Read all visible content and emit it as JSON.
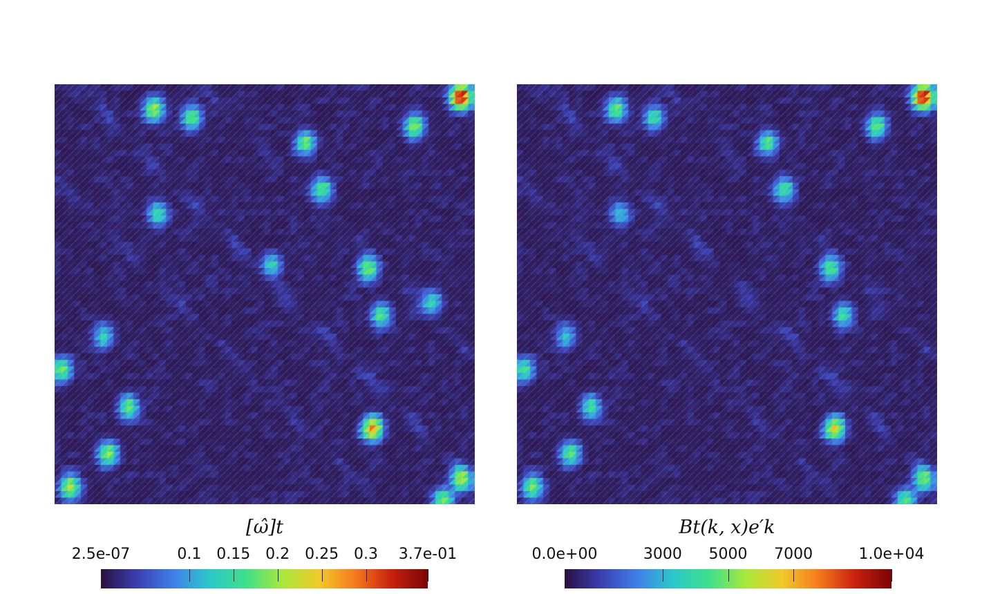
{
  "chart_data": [
    {
      "type": "heatmap",
      "title": "[ω̂]t",
      "colorbar": {
        "min_label": "2.5e-07",
        "max_label": "3.7e-01",
        "range": [
          2.5e-07,
          0.37
        ],
        "ticks": [
          {
            "value": 0.1,
            "label": "0.1"
          },
          {
            "value": 0.15,
            "label": "0.15"
          },
          {
            "value": 0.2,
            "label": "0.2"
          },
          {
            "value": 0.25,
            "label": "0.25"
          },
          {
            "value": 0.3,
            "label": "0.3"
          }
        ]
      },
      "grid_cells": 64,
      "hotspots": [
        {
          "x": 0.24,
          "y": 0.06,
          "value": 0.21
        },
        {
          "x": 0.33,
          "y": 0.08,
          "value": 0.18
        },
        {
          "x": 0.97,
          "y": 0.03,
          "value": 0.37
        },
        {
          "x": 0.86,
          "y": 0.1,
          "value": 0.2
        },
        {
          "x": 0.6,
          "y": 0.14,
          "value": 0.18
        },
        {
          "x": 0.64,
          "y": 0.25,
          "value": 0.17
        },
        {
          "x": 0.25,
          "y": 0.31,
          "value": 0.15
        },
        {
          "x": 0.52,
          "y": 0.43,
          "value": 0.14
        },
        {
          "x": 0.75,
          "y": 0.44,
          "value": 0.19
        },
        {
          "x": 0.78,
          "y": 0.55,
          "value": 0.17
        },
        {
          "x": 0.12,
          "y": 0.6,
          "value": 0.14
        },
        {
          "x": 0.02,
          "y": 0.68,
          "value": 0.19
        },
        {
          "x": 0.18,
          "y": 0.77,
          "value": 0.18
        },
        {
          "x": 0.13,
          "y": 0.88,
          "value": 0.2
        },
        {
          "x": 0.04,
          "y": 0.96,
          "value": 0.22
        },
        {
          "x": 0.76,
          "y": 0.82,
          "value": 0.28
        },
        {
          "x": 0.97,
          "y": 0.94,
          "value": 0.21
        },
        {
          "x": 0.93,
          "y": 0.99,
          "value": 0.19
        },
        {
          "x": 0.9,
          "y": 0.52,
          "value": 0.14
        }
      ]
    },
    {
      "type": "heatmap",
      "title": "Bt(k, x)e′k",
      "colorbar": {
        "min_label": "0.0e+00",
        "max_label": "1.0e+04",
        "range": [
          0,
          10000
        ],
        "ticks": [
          {
            "value": 3000,
            "label": "3000"
          },
          {
            "value": 5000,
            "label": "5000"
          },
          {
            "value": 7000,
            "label": "7000"
          }
        ]
      },
      "grid_cells": 64,
      "hotspots": [
        {
          "x": 0.24,
          "y": 0.06,
          "value": 5000
        },
        {
          "x": 0.33,
          "y": 0.08,
          "value": 4200
        },
        {
          "x": 0.97,
          "y": 0.03,
          "value": 10000
        },
        {
          "x": 0.86,
          "y": 0.1,
          "value": 5000
        },
        {
          "x": 0.6,
          "y": 0.14,
          "value": 4500
        },
        {
          "x": 0.64,
          "y": 0.25,
          "value": 4300
        },
        {
          "x": 0.25,
          "y": 0.31,
          "value": 3200
        },
        {
          "x": 0.75,
          "y": 0.44,
          "value": 4600
        },
        {
          "x": 0.78,
          "y": 0.55,
          "value": 4200
        },
        {
          "x": 0.12,
          "y": 0.6,
          "value": 3300
        },
        {
          "x": 0.02,
          "y": 0.68,
          "value": 4500
        },
        {
          "x": 0.18,
          "y": 0.77,
          "value": 4300
        },
        {
          "x": 0.13,
          "y": 0.88,
          "value": 4800
        },
        {
          "x": 0.04,
          "y": 0.96,
          "value": 5200
        },
        {
          "x": 0.76,
          "y": 0.82,
          "value": 6500
        },
        {
          "x": 0.97,
          "y": 0.94,
          "value": 5000
        },
        {
          "x": 0.93,
          "y": 0.99,
          "value": 4600
        }
      ]
    }
  ],
  "colormap": [
    "#2a1040",
    "#3b3fb0",
    "#3f7fe8",
    "#2bc9c9",
    "#3fe08a",
    "#a8e83a",
    "#f0c92a",
    "#f57a1c",
    "#c8200e",
    "#7a0403"
  ]
}
